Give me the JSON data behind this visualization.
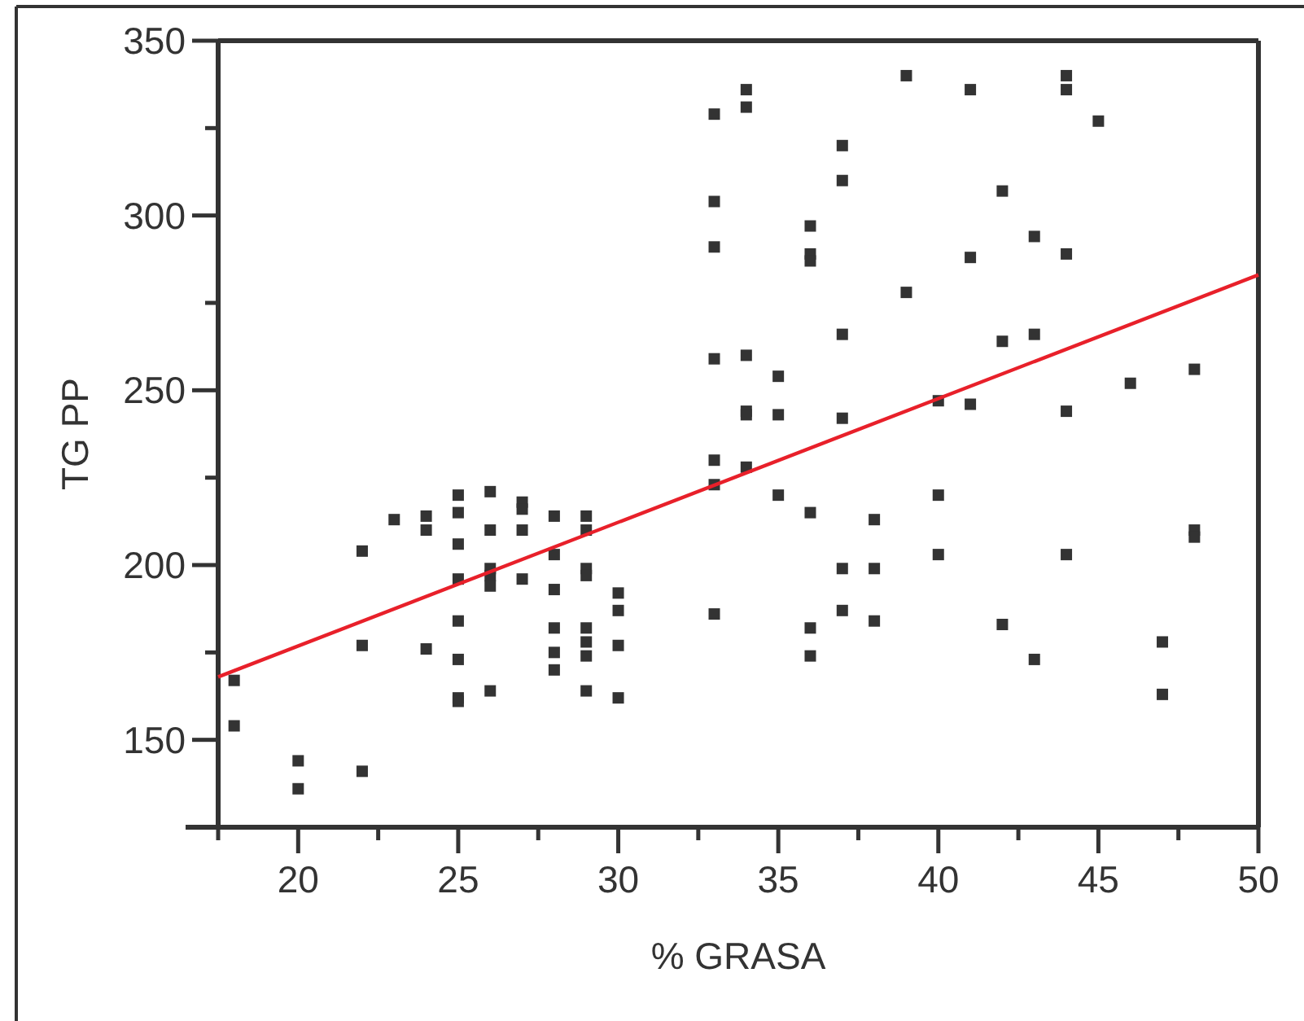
{
  "chart_data": {
    "type": "scatter",
    "xlabel": "% GRASA",
    "ylabel": "TG PP",
    "xlim": [
      17.5,
      50
    ],
    "ylim": [
      125,
      350
    ],
    "xticks": [
      {
        "value": 17.5,
        "label": null
      },
      20,
      {
        "value": 22.5,
        "label": null
      },
      25,
      {
        "value": 27.5,
        "label": null
      },
      30,
      {
        "value": 32.5,
        "label": null
      },
      35,
      {
        "value": 37.5,
        "label": null
      },
      40,
      {
        "value": 42.5,
        "label": null
      },
      45,
      {
        "value": 47.5,
        "label": null
      },
      50
    ],
    "yticks": [
      150,
      {
        "value": 175,
        "label": null
      },
      200,
      {
        "value": 225,
        "label": null
      },
      250,
      {
        "value": 275,
        "label": null
      },
      300,
      {
        "value": 325,
        "label": null
      },
      350
    ],
    "grid": false,
    "series": [
      {
        "color": "#333333",
        "marker": "square",
        "x": [
          18,
          18,
          20,
          20,
          22,
          22,
          22,
          23,
          24,
          24,
          24,
          25,
          25,
          25,
          25,
          25,
          25,
          25,
          25,
          26,
          26,
          26,
          26,
          26,
          26,
          27,
          27,
          27,
          27,
          28,
          28,
          28,
          28,
          28,
          28,
          29,
          29,
          29,
          29,
          29,
          29,
          29,
          29,
          30,
          30,
          30,
          30,
          33,
          33,
          33,
          33,
          33,
          33,
          33,
          34,
          34,
          34,
          34,
          34,
          34,
          35,
          35,
          35,
          36,
          36,
          36,
          36,
          36,
          36,
          37,
          37,
          37,
          37,
          37,
          37,
          38,
          38,
          38,
          39,
          39,
          40,
          40,
          40,
          41,
          41,
          41,
          42,
          42,
          42,
          43,
          43,
          43,
          44,
          44,
          44,
          44,
          44,
          45,
          46,
          47,
          47,
          48,
          48,
          48
        ],
        "values": [
          167,
          154,
          144,
          136,
          204,
          177,
          141,
          213,
          214,
          210,
          176,
          220,
          215,
          206,
          196,
          184,
          173,
          162,
          161,
          221,
          210,
          199,
          197,
          194,
          164,
          218,
          216,
          210,
          196,
          214,
          203,
          193,
          182,
          175,
          170,
          214,
          210,
          199,
          197,
          182,
          178,
          174,
          164,
          192,
          187,
          177,
          162,
          329,
          304,
          291,
          259,
          230,
          223,
          186,
          336,
          331,
          260,
          244,
          243,
          228,
          254,
          243,
          220,
          297,
          289,
          287,
          215,
          182,
          174,
          320,
          310,
          266,
          242,
          199,
          187,
          213,
          199,
          184,
          340,
          278,
          247,
          220,
          203,
          336,
          288,
          246,
          307,
          264,
          183,
          294,
          266,
          173,
          340,
          336,
          289,
          244,
          203,
          327,
          252,
          178,
          163,
          256,
          210,
          208
        ]
      },
      {
        "type": "line",
        "color": "#e8202a",
        "line_style": "solid",
        "marker": "none",
        "x": [
          17.5,
          50
        ],
        "values": [
          168,
          283
        ]
      }
    ]
  }
}
